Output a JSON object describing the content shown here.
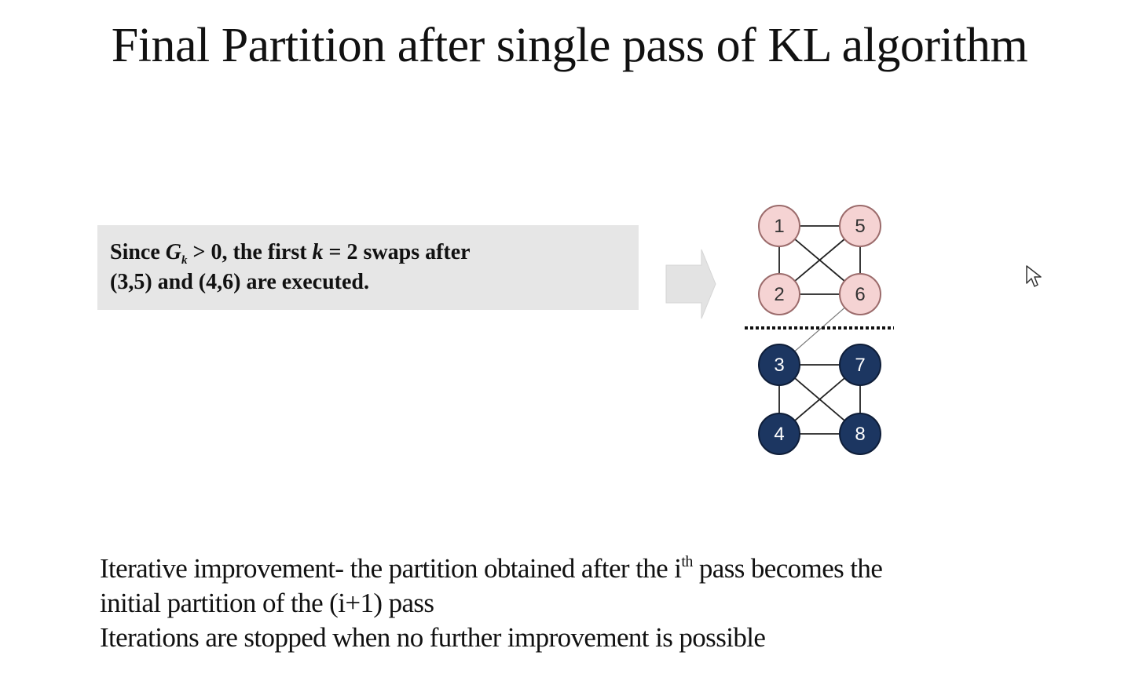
{
  "slide": {
    "title": "Final Partition after single pass of KL algorithm"
  },
  "callout": {
    "line1_a": "Since ",
    "line1_g": "G",
    "line1_k": "k",
    "line1_b": " > 0, the first ",
    "line1_kvar": "k",
    "line1_c": " = 2 swaps after",
    "line2": "(3,5) and (4,6) are executed."
  },
  "graph": {
    "partition_top": {
      "color": "#f5d3d3",
      "stroke": "#9b6b6b",
      "text_color": "#333333",
      "nodes": [
        "1",
        "5",
        "2",
        "6"
      ]
    },
    "partition_bottom": {
      "color": "#1c3661",
      "stroke": "#0e1d38",
      "text_color": "#ffffff",
      "nodes": [
        "3",
        "7",
        "4",
        "8"
      ]
    },
    "edges": [
      [
        "1",
        "5"
      ],
      [
        "1",
        "2"
      ],
      [
        "1",
        "6"
      ],
      [
        "5",
        "2"
      ],
      [
        "5",
        "6"
      ],
      [
        "2",
        "6"
      ],
      [
        "6",
        "3"
      ],
      [
        "3",
        "7"
      ],
      [
        "3",
        "4"
      ],
      [
        "3",
        "8"
      ],
      [
        "7",
        "4"
      ],
      [
        "7",
        "8"
      ],
      [
        "4",
        "8"
      ]
    ]
  },
  "notes": {
    "line1_a": "Iterative improvement- the partition obtained  after the i",
    "line1_sup": "th",
    "line1_b": " pass becomes the",
    "line2": "initial partition of the (i+1) pass",
    "line3": "Iterations are stopped when no further improvement is possible"
  }
}
